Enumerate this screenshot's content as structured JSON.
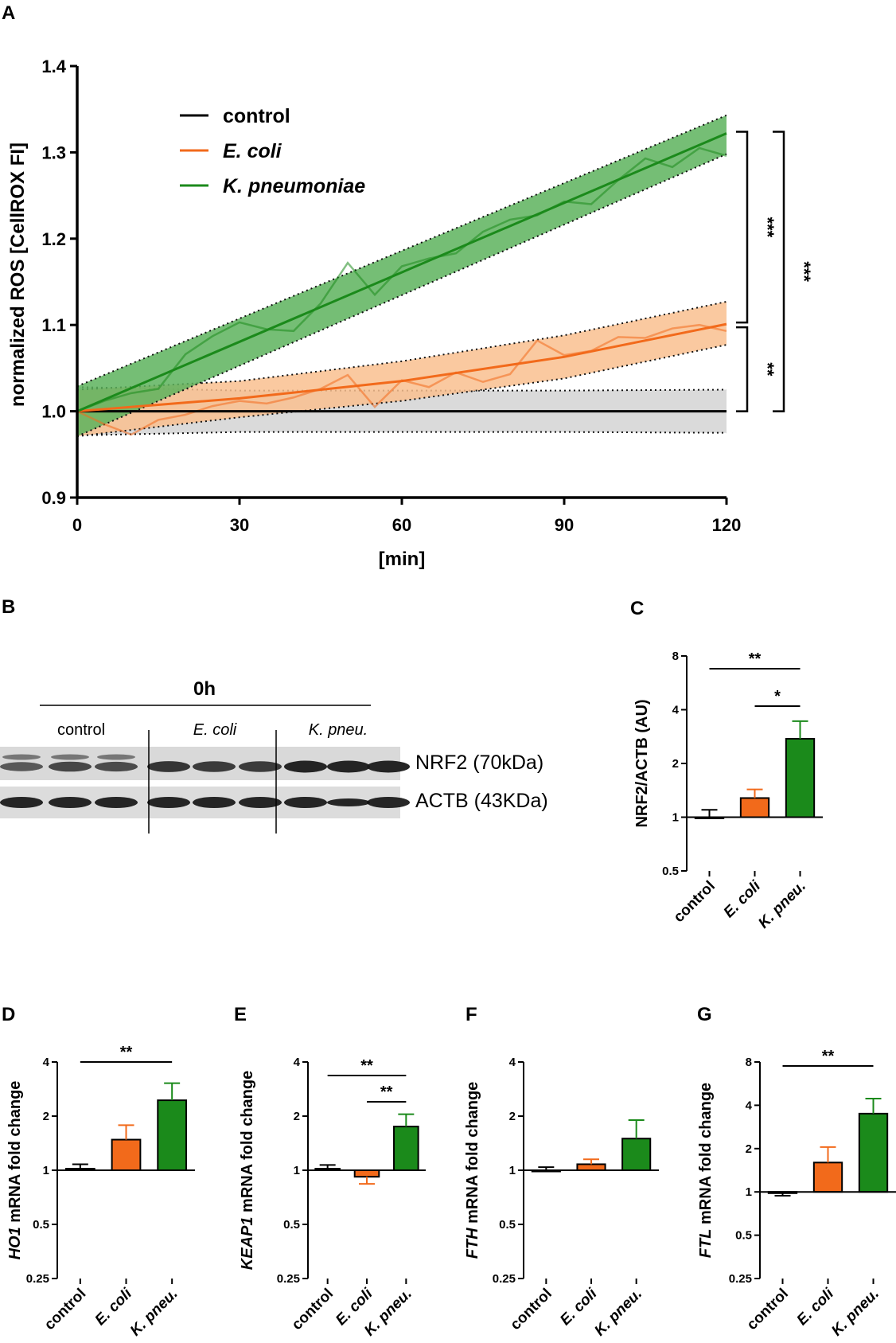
{
  "panels": {
    "A": "A",
    "B": "B",
    "C": "C",
    "D": "D",
    "E": "E",
    "F": "F",
    "G": "G"
  },
  "colors": {
    "control": "#000000",
    "ecoli": "#F26A1B",
    "kpneu": "#1B8A1B",
    "ecoli_band": "#F9C08F",
    "kpneu_band": "#5DB35D",
    "control_band": "#D6D6D6"
  },
  "blot": {
    "timepoint": "0h",
    "groups": [
      "control",
      "E. coli",
      "K. pneu."
    ],
    "rows": [
      {
        "label": "NRF2 (70kDa)"
      },
      {
        "label": "ACTB (43KDa)"
      }
    ]
  },
  "chart_data": [
    {
      "id": "A",
      "type": "line",
      "xlabel": "[min]",
      "ylabel": "normalized ROS [CellROX FI]",
      "xlim": [
        0,
        120
      ],
      "ylim": [
        0.9,
        1.4
      ],
      "xticks": [
        "0",
        "30",
        "60",
        "90",
        "120"
      ],
      "yticks": [
        "0.9",
        "1.0",
        "1.1",
        "1.2",
        "1.3",
        "1.4"
      ],
      "legend": [
        {
          "name": "control",
          "italic": false
        },
        {
          "name": "E. coli",
          "italic": true
        },
        {
          "name": "K. pneumoniae",
          "italic": true
        }
      ],
      "series": [
        {
          "name": "control",
          "fit": {
            "x": [
              0,
              120
            ],
            "y": [
              1.0,
              1.0
            ]
          },
          "band": {
            "x": [
              0,
              30,
              60,
              90,
              120
            ],
            "upper": [
              1.028,
              1.024,
              1.024,
              1.024,
              1.025
            ],
            "lower": [
              0.972,
              0.976,
              0.976,
              0.976,
              0.975
            ]
          }
        },
        {
          "name": "E. coli",
          "fit": {
            "x": [
              0,
              30,
              60,
              90,
              120
            ],
            "y": [
              1.0,
              1.015,
              1.035,
              1.063,
              1.101
            ]
          },
          "band": {
            "x": [
              0,
              30,
              60,
              90,
              120
            ],
            "upper": [
              1.025,
              1.035,
              1.058,
              1.088,
              1.127
            ],
            "lower": [
              0.971,
              0.993,
              1.012,
              1.038,
              1.077
            ]
          },
          "raw": {
            "x": [
              0,
              5,
              10,
              15,
              20,
              25,
              30,
              35,
              40,
              45,
              50,
              55,
              60,
              65,
              70,
              75,
              80,
              85,
              90,
              95,
              100,
              105,
              110,
              115,
              120
            ],
            "y": [
              1.0,
              0.985,
              0.973,
              0.99,
              0.996,
              1.006,
              1.012,
              1.009,
              1.016,
              1.026,
              1.042,
              1.005,
              1.036,
              1.028,
              1.045,
              1.034,
              1.043,
              1.082,
              1.065,
              1.07,
              1.086,
              1.085,
              1.096,
              1.1,
              1.093
            ]
          }
        },
        {
          "name": "K. pneumoniae",
          "fit": {
            "x": [
              0,
              120
            ],
            "y": [
              1.0,
              1.322
            ]
          },
          "band": {
            "x": [
              0,
              120
            ],
            "upper": [
              1.029,
              1.343
            ],
            "lower": [
              0.971,
              1.298
            ]
          },
          "raw": {
            "x": [
              0,
              5,
              10,
              15,
              20,
              25,
              30,
              35,
              40,
              45,
              50,
              55,
              60,
              65,
              70,
              75,
              80,
              85,
              90,
              95,
              100,
              105,
              110,
              115,
              120
            ],
            "y": [
              1.0,
              1.012,
              1.021,
              1.026,
              1.066,
              1.087,
              1.103,
              1.095,
              1.093,
              1.125,
              1.172,
              1.135,
              1.168,
              1.177,
              1.183,
              1.208,
              1.222,
              1.227,
              1.243,
              1.24,
              1.268,
              1.293,
              1.283,
              1.305,
              1.296
            ]
          }
        }
      ],
      "significance": [
        {
          "label": "***",
          "between": [
            "K. pneumoniae",
            "E. coli"
          ]
        },
        {
          "label": "**",
          "between": [
            "E. coli",
            "control"
          ]
        },
        {
          "label": "***",
          "between": [
            "K. pneumoniae",
            "control"
          ]
        }
      ]
    },
    {
      "id": "C",
      "type": "bar",
      "yscale": "log2",
      "ylabel": "NRF2/ACTB (AU)",
      "ylabel_italic": "",
      "ylim": [
        0.5,
        8
      ],
      "yticks": [
        "0.5",
        "1",
        "2",
        "4",
        "8"
      ],
      "categories": [
        "control",
        "E. coli",
        "K. pneu."
      ],
      "values": [
        1.0,
        1.28,
        2.75
      ],
      "errors": [
        0.1,
        0.15,
        0.7
      ],
      "significance": [
        {
          "label": "**",
          "from": 0,
          "to": 2
        },
        {
          "label": "*",
          "from": 1,
          "to": 2
        }
      ]
    },
    {
      "id": "D",
      "type": "bar",
      "yscale": "log2",
      "ylabel": " mRNA fold change",
      "ylabel_italic": "HO1",
      "ylim": [
        0.25,
        4
      ],
      "yticks": [
        "0.25",
        "0.5",
        "1",
        "2",
        "4"
      ],
      "categories": [
        "control",
        "E. coli",
        "K. pneu."
      ],
      "values": [
        1.02,
        1.48,
        2.45
      ],
      "errors": [
        0.06,
        0.3,
        0.6
      ],
      "significance": [
        {
          "label": "**",
          "from": 0,
          "to": 2
        }
      ]
    },
    {
      "id": "E",
      "type": "bar",
      "yscale": "log2",
      "ylabel": " mRNA fold change",
      "ylabel_italic": "KEAP1",
      "ylim": [
        0.25,
        4
      ],
      "yticks": [
        "0.25",
        "0.5",
        "1",
        "2",
        "4"
      ],
      "categories": [
        "control",
        "E. coli",
        "K. pneu."
      ],
      "values": [
        1.02,
        0.92,
        1.75
      ],
      "errors": [
        0.05,
        0.08,
        0.3
      ],
      "significance": [
        {
          "label": "**",
          "from": 0,
          "to": 2
        },
        {
          "label": "**",
          "from": 1,
          "to": 2
        }
      ]
    },
    {
      "id": "F",
      "type": "bar",
      "yscale": "log2",
      "ylabel": " mRNA fold change",
      "ylabel_italic": "FTH",
      "ylim": [
        0.25,
        4
      ],
      "yticks": [
        "0.25",
        "0.5",
        "1",
        "2",
        "4"
      ],
      "categories": [
        "control",
        "E. coli",
        "K. pneu."
      ],
      "values": [
        1.0,
        1.08,
        1.5
      ],
      "errors": [
        0.04,
        0.07,
        0.4
      ],
      "significance": []
    },
    {
      "id": "G",
      "type": "bar",
      "yscale": "log2",
      "ylabel": " mRNA fold change",
      "ylabel_italic": "FTL",
      "ylim": [
        0.25,
        8
      ],
      "yticks": [
        "0.25",
        "0.5",
        "1",
        "2",
        "4",
        "8"
      ],
      "categories": [
        "control",
        "E. coli",
        "K. pneu."
      ],
      "values": [
        0.98,
        1.6,
        3.5
      ],
      "errors": [
        0.04,
        0.45,
        0.95
      ],
      "significance": [
        {
          "label": "**",
          "from": 0,
          "to": 2
        }
      ]
    }
  ]
}
